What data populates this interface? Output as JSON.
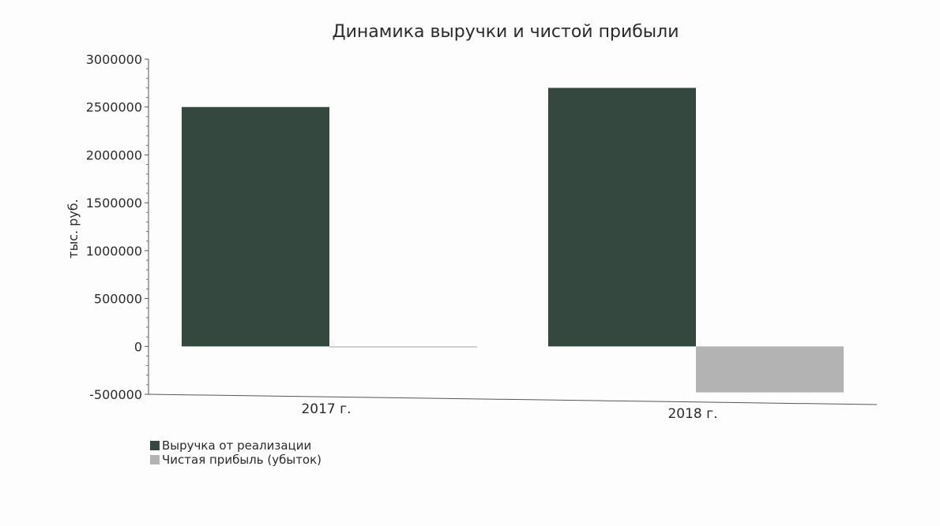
{
  "chart_data": {
    "type": "bar",
    "title": "Динамика выручки и чистой прибыли",
    "ylabel": "тыс. руб.",
    "xlabel": "",
    "categories": [
      "2017 г.",
      "2018 г."
    ],
    "ylim": [
      -500000,
      3000000
    ],
    "yticks": [
      3000000,
      2500000,
      2000000,
      1500000,
      1000000,
      500000,
      0,
      -500000
    ],
    "ytick_labels": [
      "3000000",
      "2500000",
      "2000000",
      "1500000",
      "1000000",
      "500000",
      "0",
      "-500000"
    ],
    "series": [
      {
        "name": "Выручка от реализации",
        "values": [
          2500000,
          2700000
        ],
        "color": "#34483f"
      },
      {
        "name": "Чистая прибыль (убыток)",
        "values": [
          -10000,
          -480000
        ],
        "color": "#b3b3b3"
      }
    ],
    "grid": false,
    "legend_position": "bottom-left"
  }
}
